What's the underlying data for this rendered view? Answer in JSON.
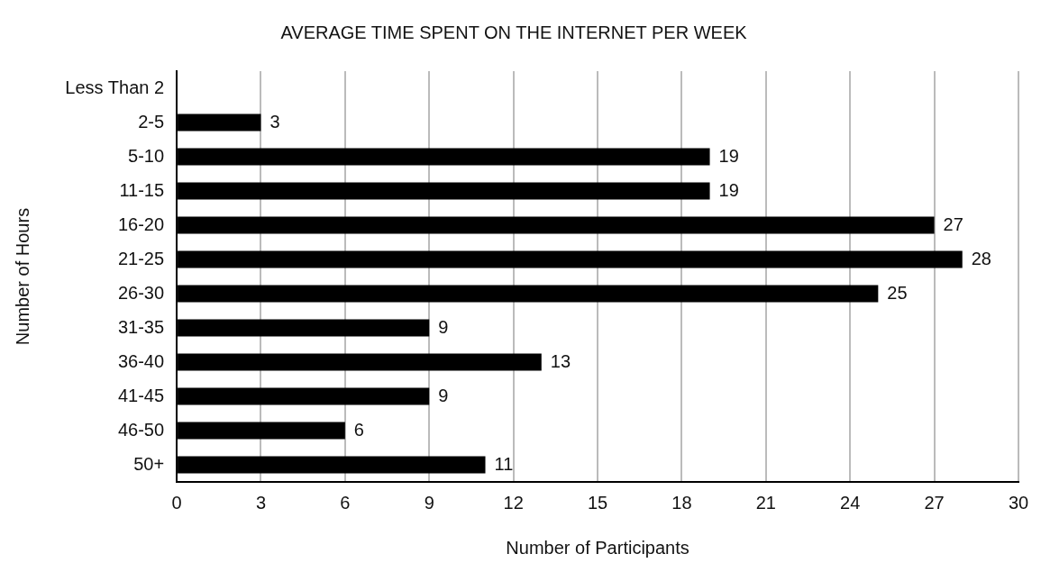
{
  "chart_data": {
    "type": "bar",
    "orientation": "horizontal",
    "title": "AVERAGE TIME SPENT ON THE INTERNET PER WEEK",
    "xlabel": "Number of Participants",
    "ylabel": "Number of Hours",
    "categories": [
      "Less Than 2",
      "2-5",
      "5-10",
      "11-15",
      "16-20",
      "21-25",
      "26-30",
      "31-35",
      "36-40",
      "41-45",
      "46-50",
      "50+"
    ],
    "values": [
      null,
      3,
      19,
      19,
      27,
      28,
      25,
      9,
      13,
      9,
      6,
      11
    ],
    "color": "#000000",
    "xlim": [
      0,
      30
    ],
    "xticks": [
      0,
      3,
      6,
      9,
      12,
      15,
      18,
      21,
      24,
      27,
      30
    ],
    "grid": "x",
    "data_labels": true,
    "legend": false
  }
}
